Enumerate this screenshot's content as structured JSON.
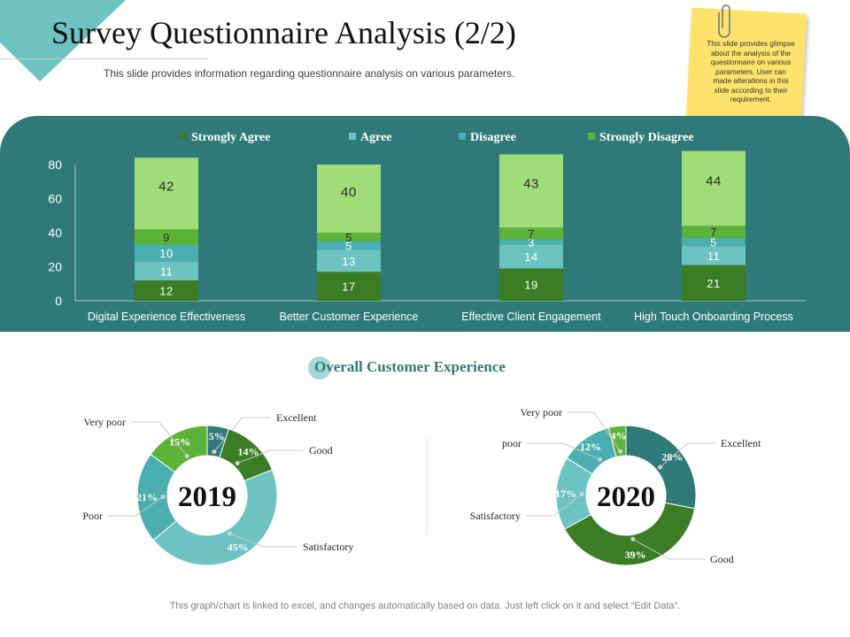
{
  "title": "Survey Questionnaire Analysis (2/2)",
  "subtitle": "This slide provides information regarding questionnaire analysis on various parameters.",
  "sticky_note": "This slide provides glimpse about the analysis of the questionnaire on various parameters. User can made alterations in this slide according to their requirement.",
  "section_title": "Overall Customer Experience",
  "footer": "This graph/chart is linked to excel, and changes automatically based on data. Just left click on it and select “Edit Data”.",
  "colors": {
    "teal_band": "#2f7a79",
    "strongly_agree": "#3a7d25",
    "agree": "#6cc3c1",
    "disagree": "#4aafae",
    "strongly_disagree": "#5db33a",
    "top_segment": "#a0dc78"
  },
  "chart_data": [
    {
      "type": "bar",
      "stacked": true,
      "categories": [
        "Digital Experience Effectiveness",
        "Better Customer Experience",
        "Effective Client Engagement",
        "High Touch Onboarding Process"
      ],
      "series": [
        {
          "name": "Strongly Agree",
          "values": [
            12,
            17,
            19,
            21
          ]
        },
        {
          "name": "Agree",
          "values": [
            11,
            13,
            14,
            11
          ]
        },
        {
          "name": "Disagree",
          "values": [
            10,
            5,
            3,
            5
          ]
        },
        {
          "name": "Strongly Disagree",
          "values": [
            9,
            5,
            7,
            7
          ]
        },
        {
          "values": [
            42,
            40,
            43,
            44
          ]
        }
      ],
      "ylim": [
        0,
        80
      ],
      "yticks": [
        "0",
        "20",
        "40",
        "60",
        "80"
      ],
      "legend": "top"
    },
    {
      "type": "pie",
      "donut": true,
      "center_label": "2019",
      "labels": [
        "Excellent",
        "Good",
        "Satisfactory",
        "Poor",
        "Very poor"
      ],
      "values": [
        5,
        14,
        45,
        21,
        15
      ],
      "value_labels": [
        "5%",
        "14%",
        "45%",
        "21%",
        "15%"
      ],
      "colors": [
        "#2f7a79",
        "#3a7d25",
        "#6cc3c1",
        "#4aafae",
        "#5db33a"
      ]
    },
    {
      "type": "pie",
      "donut": true,
      "center_label": "2020",
      "labels": [
        "Excellent",
        "Good",
        "Satisfactory",
        "poor",
        "Very poor"
      ],
      "values": [
        28,
        39,
        17,
        12,
        4
      ],
      "value_labels": [
        "28%",
        "39%",
        "17%",
        "12%",
        "4%"
      ],
      "colors": [
        "#2f7a79",
        "#3a7d25",
        "#6cc3c1",
        "#4aafae",
        "#5db33a"
      ]
    }
  ]
}
